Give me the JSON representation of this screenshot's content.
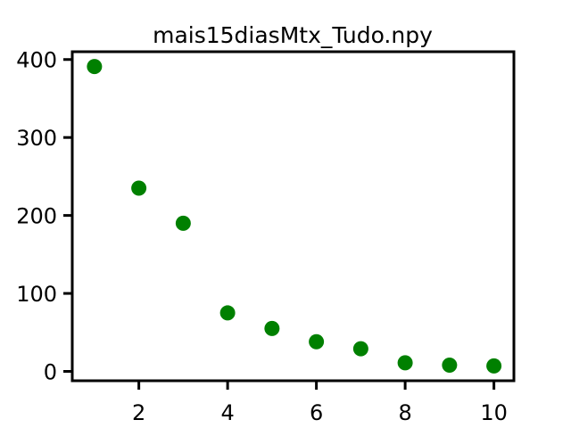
{
  "chart_data": {
    "type": "scatter",
    "title": "mais15diasMtx_Tudo.npy",
    "xlabel": "",
    "ylabel": "",
    "xlim": [
      0.5,
      10.45
    ],
    "ylim": [
      -12,
      410
    ],
    "xticks": [
      2,
      4,
      6,
      8,
      10
    ],
    "yticks": [
      0,
      100,
      200,
      300,
      400
    ],
    "grid": false,
    "marker_color": "#008000",
    "series": [
      {
        "x": [
          1,
          2,
          3,
          4,
          5,
          6,
          7,
          8,
          9,
          10
        ],
        "y": [
          391,
          235,
          190,
          75,
          55,
          38,
          29,
          11,
          8,
          7
        ]
      }
    ]
  }
}
